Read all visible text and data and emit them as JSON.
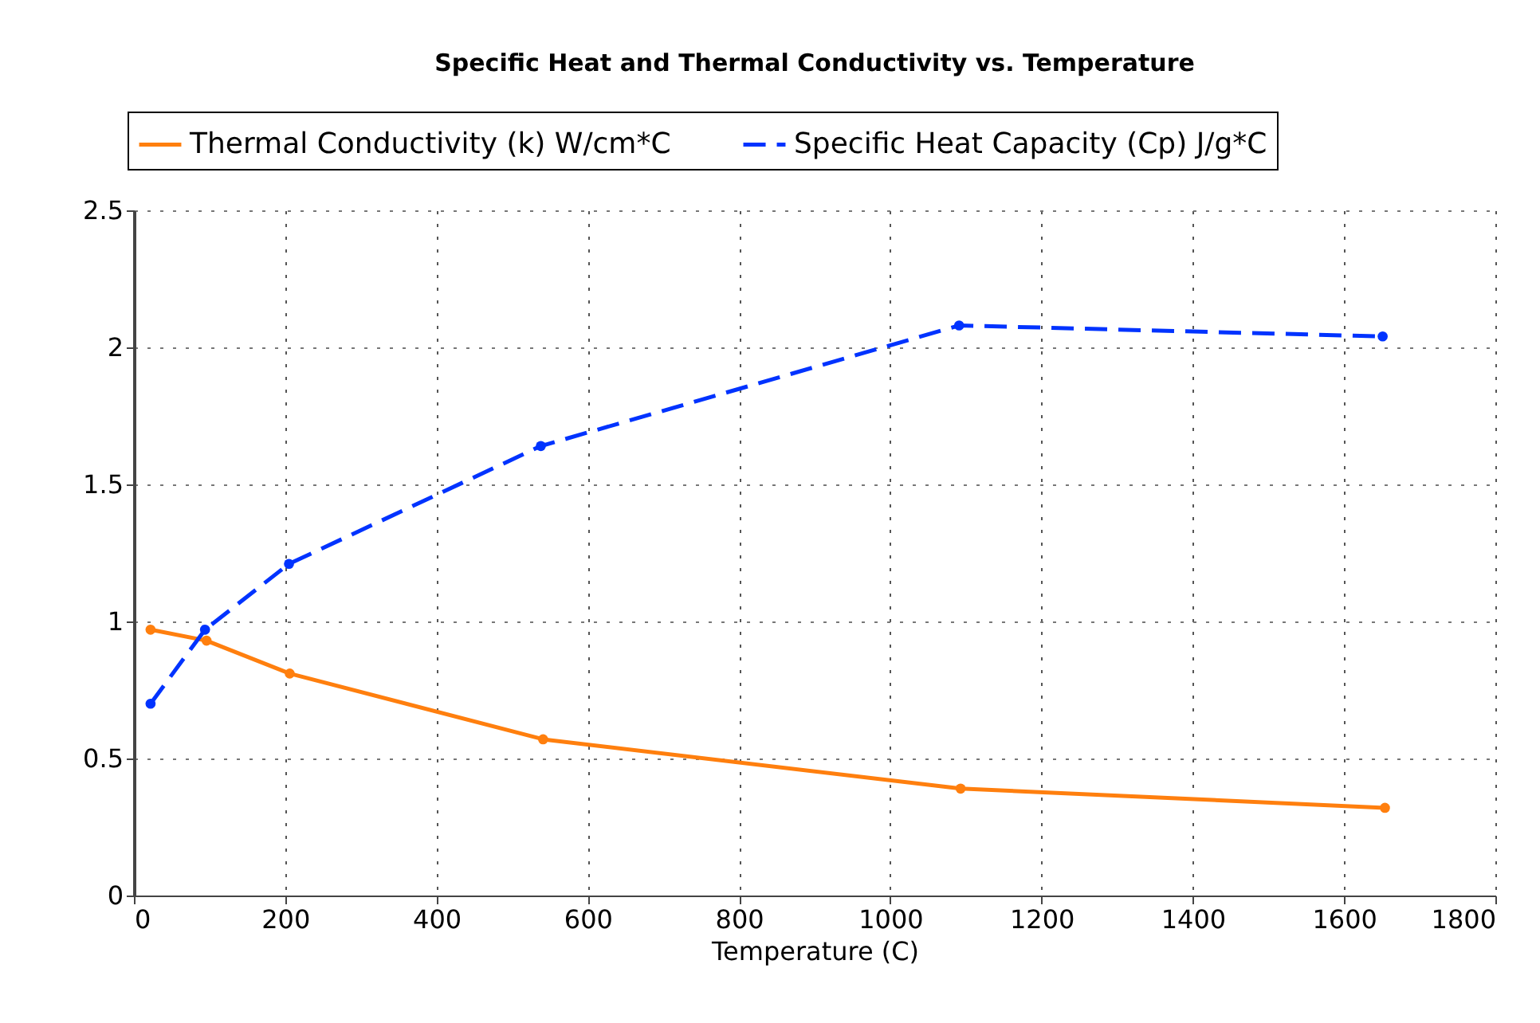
{
  "chart_data": {
    "type": "line",
    "title": "Specific Heat and Thermal Conductivity vs. Temperature",
    "xlabel": "Temperature (C)",
    "xlim": [
      0,
      1800
    ],
    "xticks": [
      0,
      200,
      400,
      600,
      800,
      1000,
      1200,
      1400,
      1600,
      1800
    ],
    "ylim": [
      0,
      2.5
    ],
    "yticks": [
      0,
      0.5,
      1,
      1.5,
      2,
      2.5
    ],
    "grid": true,
    "legend": "top",
    "marker": "circle",
    "series": [
      {
        "name": "Thermal Conductivity (k) W/cm*C",
        "color": "#ff7f0e",
        "line_style": "solid",
        "x": [
          22,
          96,
          206,
          541,
          1093,
          1654
        ],
        "values": [
          0.97,
          0.93,
          0.81,
          0.57,
          0.39,
          0.32
        ]
      },
      {
        "name": "Specific Heat Capacity (Cp) J/g*C",
        "color": "#0033ff",
        "line_style": "dashed",
        "x": [
          22,
          94,
          205,
          538,
          1091,
          1651
        ],
        "values": [
          0.7,
          0.97,
          1.21,
          1.64,
          2.08,
          2.04
        ]
      }
    ]
  }
}
